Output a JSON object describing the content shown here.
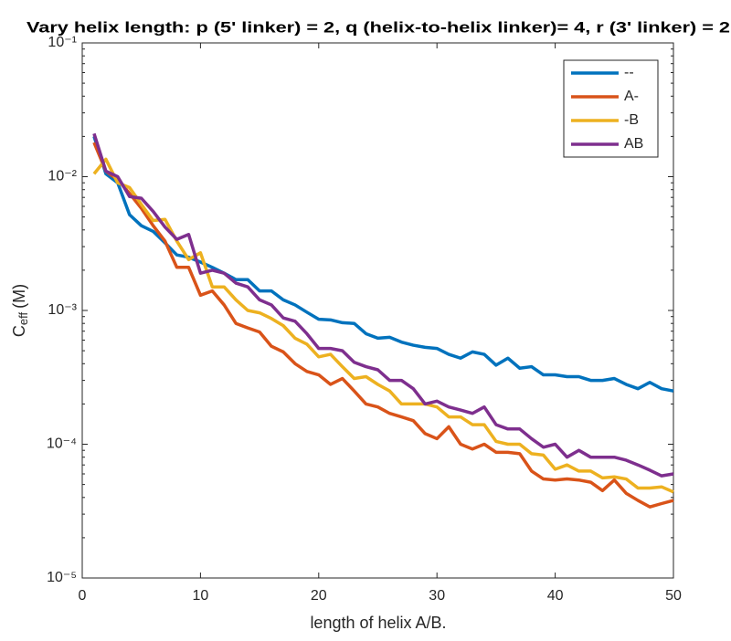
{
  "chart_data": {
    "type": "line",
    "title": "Vary helix length: p (5' linker) = 2, q (helix-to-helix linker)= 4, r (3' linker) = 2",
    "xlabel": "length of helix A/B.",
    "ylabel": {
      "main": "C",
      "sub": "eff",
      "unit": "(M)"
    },
    "x": [
      1,
      2,
      3,
      4,
      5,
      6,
      7,
      8,
      9,
      10,
      11,
      12,
      13,
      14,
      15,
      16,
      17,
      18,
      19,
      20,
      21,
      22,
      23,
      24,
      25,
      26,
      27,
      28,
      29,
      30,
      31,
      32,
      33,
      34,
      35,
      36,
      37,
      38,
      39,
      40,
      41,
      42,
      43,
      44,
      45,
      46,
      47,
      48,
      49,
      50
    ],
    "series": [
      {
        "name": "--",
        "color": "#0072bd",
        "values": [
          0.02,
          0.0105,
          0.009,
          0.0052,
          0.0043,
          0.0039,
          0.0032,
          0.0026,
          0.0025,
          0.0023,
          0.0021,
          0.0019,
          0.0017,
          0.0017,
          0.0014,
          0.0014,
          0.0012,
          0.0011,
          0.00097,
          0.00086,
          0.00085,
          0.00081,
          0.0008,
          0.00067,
          0.00062,
          0.00063,
          0.00058,
          0.00055,
          0.00053,
          0.00052,
          0.00047,
          0.00044,
          0.00049,
          0.00047,
          0.00039,
          0.00044,
          0.00037,
          0.00038,
          0.00033,
          0.00033,
          0.00032,
          0.00032,
          0.0003,
          0.0003,
          0.00031,
          0.00028,
          0.00026,
          0.00029,
          0.00026,
          0.00025
        ]
      },
      {
        "name": "A-",
        "color": "#d95319",
        "values": [
          0.018,
          0.011,
          0.0095,
          0.0075,
          0.0058,
          0.0043,
          0.0033,
          0.0021,
          0.0021,
          0.0013,
          0.0014,
          0.0011,
          0.0008,
          0.00074,
          0.00069,
          0.00054,
          0.00049,
          0.0004,
          0.00035,
          0.00033,
          0.00028,
          0.00031,
          0.00025,
          0.0002,
          0.00019,
          0.00017,
          0.00016,
          0.00015,
          0.00012,
          0.00011,
          0.000135,
          0.0001,
          9.2e-05,
          0.0001,
          8.7e-05,
          8.7e-05,
          8.5e-05,
          6.3e-05,
          5.5e-05,
          5.4e-05,
          5.5e-05,
          5.4e-05,
          5.2e-05,
          4.5e-05,
          5.4e-05,
          4.3e-05,
          3.8e-05,
          3.4e-05,
          3.6e-05,
          3.8e-05
        ]
      },
      {
        "name": "-B",
        "color": "#edb120",
        "values": [
          0.0105,
          0.0135,
          0.009,
          0.0083,
          0.0062,
          0.0047,
          0.0048,
          0.0033,
          0.0024,
          0.0027,
          0.0015,
          0.0015,
          0.0012,
          0.001,
          0.00096,
          0.00087,
          0.00077,
          0.00062,
          0.00056,
          0.00045,
          0.00047,
          0.00038,
          0.00031,
          0.00032,
          0.00028,
          0.00025,
          0.0002,
          0.0002,
          0.0002,
          0.00019,
          0.00016,
          0.00016,
          0.00014,
          0.00014,
          0.000105,
          0.0001,
          0.0001,
          8.5e-05,
          8.3e-05,
          6.5e-05,
          7e-05,
          6.3e-05,
          6.3e-05,
          5.6e-05,
          5.7e-05,
          5.5e-05,
          4.7e-05,
          4.7e-05,
          4.8e-05,
          4.4e-05
        ]
      },
      {
        "name": "AB",
        "color": "#7e2f8e",
        "values": [
          0.021,
          0.011,
          0.01,
          0.0071,
          0.0069,
          0.0055,
          0.0042,
          0.0034,
          0.0037,
          0.0019,
          0.002,
          0.0019,
          0.0016,
          0.0015,
          0.0012,
          0.0011,
          0.00088,
          0.00083,
          0.00067,
          0.00052,
          0.00052,
          0.0005,
          0.00041,
          0.00038,
          0.00036,
          0.0003,
          0.0003,
          0.00026,
          0.0002,
          0.00021,
          0.00019,
          0.00018,
          0.00017,
          0.00019,
          0.00014,
          0.00013,
          0.00013,
          0.00011,
          9.5e-05,
          0.0001,
          8e-05,
          9e-05,
          8e-05,
          8e-05,
          8e-05,
          7.6e-05,
          7e-05,
          6.4e-05,
          5.8e-05,
          6e-05
        ]
      }
    ],
    "xlim": [
      0,
      50
    ],
    "xticks": [
      0,
      10,
      20,
      30,
      40,
      50
    ],
    "ylim": [
      1e-05,
      0.1
    ],
    "ylog": true,
    "yticks": [
      {
        "value": 1e-05,
        "label": "10⁻⁵"
      },
      {
        "value": 0.0001,
        "label": "10⁻⁴"
      },
      {
        "value": 0.001,
        "label": "10⁻³"
      },
      {
        "value": 0.01,
        "label": "10⁻²"
      },
      {
        "value": 0.1,
        "label": "10⁻¹"
      }
    ],
    "legend": "top-right",
    "grid": false
  }
}
